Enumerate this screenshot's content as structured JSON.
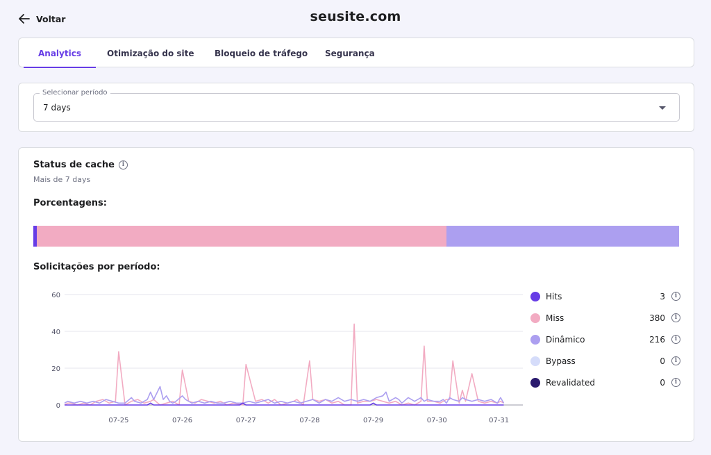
{
  "header": {
    "back_label": "Voltar",
    "site_title": "seusite.com"
  },
  "tabs": [
    {
      "label": "Analytics",
      "active": true
    },
    {
      "label": "Otimização do site",
      "active": false
    },
    {
      "label": "Bloqueio de tráfego",
      "active": false
    },
    {
      "label": "Segurança",
      "active": false
    }
  ],
  "period": {
    "label": "Selecionar período",
    "value": "7 days"
  },
  "cache": {
    "title": "Status de cache",
    "subtitle": "Mais de 7 days",
    "percent_label": "Porcentagens:",
    "requests_label": "Solicitações por período:"
  },
  "colors": {
    "accent": "#673de6",
    "hits": "#673de6",
    "miss": "#f2abc2",
    "dinamico": "#ac9ff0",
    "bypass": "#d5dcfa",
    "revalidated": "#2a1a6e"
  },
  "legend": [
    {
      "key": "hits",
      "name": "Hits",
      "count": "3",
      "icon": "info-icon"
    },
    {
      "key": "miss",
      "name": "Miss",
      "count": "380",
      "icon": "info-icon"
    },
    {
      "key": "dinamico",
      "name": "Dinâmico",
      "count": "216",
      "icon": "info-icon"
    },
    {
      "key": "bypass",
      "name": "Bypass",
      "count": "0",
      "icon": "info-icon"
    },
    {
      "key": "revalidated",
      "name": "Revalidated",
      "count": "0",
      "icon": "info-icon"
    }
  ],
  "chart_data": {
    "type": "line",
    "ylim": [
      0,
      60
    ],
    "yticks": [
      0,
      20,
      40,
      60
    ],
    "xlim": [
      0,
      144
    ],
    "xticks": [
      {
        "label": "07-25",
        "x": 17
      },
      {
        "label": "07-26",
        "x": 37
      },
      {
        "label": "07-27",
        "x": 57
      },
      {
        "label": "07-28",
        "x": 77
      },
      {
        "label": "07-29",
        "x": 97
      },
      {
        "label": "07-30",
        "x": 117
      },
      {
        "label": "07-31",
        "x": 136.5
      }
    ],
    "grid": true,
    "series": [
      {
        "name": "Miss",
        "key": "miss",
        "points": [
          [
            0,
            0
          ],
          [
            1,
            1
          ],
          [
            2,
            1
          ],
          [
            4,
            0
          ],
          [
            6,
            1
          ],
          [
            8,
            0
          ],
          [
            10,
            2
          ],
          [
            12,
            3
          ],
          [
            14,
            1
          ],
          [
            16,
            2
          ],
          [
            17,
            29
          ],
          [
            19,
            0
          ],
          [
            21,
            2
          ],
          [
            23,
            3
          ],
          [
            25,
            1
          ],
          [
            27,
            2
          ],
          [
            28,
            3
          ],
          [
            30,
            0
          ],
          [
            32,
            1
          ],
          [
            34,
            2
          ],
          [
            36,
            0
          ],
          [
            37,
            19
          ],
          [
            39,
            2
          ],
          [
            41,
            1
          ],
          [
            43,
            3
          ],
          [
            45,
            2
          ],
          [
            47,
            1
          ],
          [
            49,
            2
          ],
          [
            51,
            0
          ],
          [
            53,
            1
          ],
          [
            56,
            0
          ],
          [
            57,
            22
          ],
          [
            60,
            2
          ],
          [
            62,
            3
          ],
          [
            64,
            1
          ],
          [
            66,
            3
          ],
          [
            68,
            0
          ],
          [
            70,
            1
          ],
          [
            72,
            2
          ],
          [
            73,
            3
          ],
          [
            75,
            0
          ],
          [
            77,
            24
          ],
          [
            78,
            3
          ],
          [
            80,
            2
          ],
          [
            82,
            3
          ],
          [
            84,
            1
          ],
          [
            86,
            2
          ],
          [
            88,
            0
          ],
          [
            90,
            0
          ],
          [
            91,
            44
          ],
          [
            92,
            1
          ],
          [
            94,
            2
          ],
          [
            96,
            2
          ],
          [
            98,
            3
          ],
          [
            100,
            2
          ],
          [
            102,
            1
          ],
          [
            104,
            2
          ],
          [
            106,
            0
          ],
          [
            108,
            1
          ],
          [
            110,
            0
          ],
          [
            112,
            2
          ],
          [
            113,
            32
          ],
          [
            114,
            2
          ],
          [
            116,
            2
          ],
          [
            118,
            1
          ],
          [
            120,
            3
          ],
          [
            121,
            3
          ],
          [
            122,
            24
          ],
          [
            124,
            1
          ],
          [
            125,
            8
          ],
          [
            126,
            2
          ],
          [
            128,
            17
          ],
          [
            130,
            2
          ],
          [
            132,
            1
          ],
          [
            134,
            2
          ],
          [
            136,
            1
          ],
          [
            137,
            2
          ],
          [
            138,
            1
          ]
        ]
      },
      {
        "name": "Dinâmico",
        "key": "dinamico",
        "points": [
          [
            0,
            1
          ],
          [
            1,
            2
          ],
          [
            3,
            1
          ],
          [
            5,
            2
          ],
          [
            7,
            1
          ],
          [
            9,
            2
          ],
          [
            11,
            1
          ],
          [
            13,
            3
          ],
          [
            15,
            2
          ],
          [
            17,
            1
          ],
          [
            19,
            1
          ],
          [
            21,
            4
          ],
          [
            22,
            2
          ],
          [
            24,
            1
          ],
          [
            26,
            3
          ],
          [
            27,
            7
          ],
          [
            28,
            3
          ],
          [
            30,
            10
          ],
          [
            31,
            3
          ],
          [
            32,
            5
          ],
          [
            33,
            2
          ],
          [
            34,
            1
          ],
          [
            35,
            2
          ],
          [
            37,
            5
          ],
          [
            38,
            3
          ],
          [
            40,
            1
          ],
          [
            42,
            2
          ],
          [
            44,
            1
          ],
          [
            46,
            2
          ],
          [
            48,
            1
          ],
          [
            50,
            1
          ],
          [
            52,
            2
          ],
          [
            54,
            1
          ],
          [
            56,
            1
          ],
          [
            58,
            2
          ],
          [
            60,
            1
          ],
          [
            62,
            2
          ],
          [
            64,
            3
          ],
          [
            66,
            1
          ],
          [
            68,
            2
          ],
          [
            70,
            1
          ],
          [
            72,
            2
          ],
          [
            74,
            1
          ],
          [
            76,
            2
          ],
          [
            78,
            3
          ],
          [
            80,
            1
          ],
          [
            82,
            3
          ],
          [
            84,
            2
          ],
          [
            86,
            4
          ],
          [
            88,
            2
          ],
          [
            90,
            3
          ],
          [
            92,
            2
          ],
          [
            94,
            3
          ],
          [
            96,
            2
          ],
          [
            98,
            4
          ],
          [
            100,
            5
          ],
          [
            101,
            7
          ],
          [
            102,
            2
          ],
          [
            104,
            4
          ],
          [
            105,
            3
          ],
          [
            106,
            1
          ],
          [
            108,
            4
          ],
          [
            110,
            2
          ],
          [
            112,
            4
          ],
          [
            113,
            2
          ],
          [
            114,
            3
          ],
          [
            116,
            2
          ],
          [
            118,
            2
          ],
          [
            119,
            3
          ],
          [
            120,
            1
          ],
          [
            121,
            4
          ],
          [
            122,
            3
          ],
          [
            124,
            2
          ],
          [
            125,
            4
          ],
          [
            126,
            3
          ],
          [
            128,
            2
          ],
          [
            130,
            3
          ],
          [
            132,
            2
          ],
          [
            134,
            3
          ],
          [
            136,
            1
          ],
          [
            137,
            4
          ],
          [
            138,
            1
          ]
        ]
      },
      {
        "name": "Hits",
        "key": "hits",
        "points": [
          [
            0,
            0
          ],
          [
            26,
            0
          ],
          [
            27,
            1
          ],
          [
            28,
            0
          ],
          [
            55,
            0
          ],
          [
            56,
            1
          ],
          [
            57,
            0
          ],
          [
            96,
            0
          ],
          [
            97,
            1
          ],
          [
            98,
            0
          ],
          [
            138,
            0
          ]
        ]
      }
    ]
  }
}
